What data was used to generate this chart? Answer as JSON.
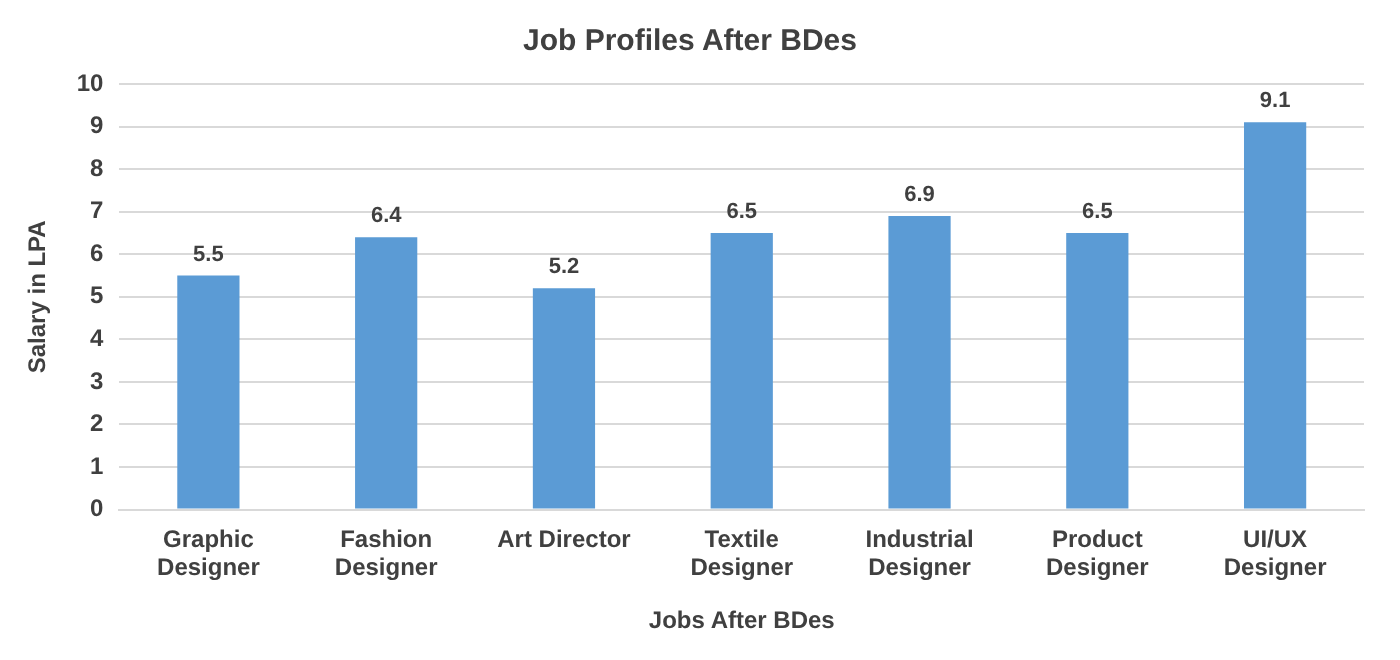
{
  "chart_data": {
    "type": "bar",
    "title": "Job Profiles After BDes",
    "xlabel": "Jobs After BDes",
    "ylabel": "Salary in LPA",
    "categories": [
      "Graphic Designer",
      "Fashion Designer",
      "Art Director",
      "Textile Designer",
      "Industrial Designer",
      "Product Designer",
      "UI/UX Designer"
    ],
    "values": [
      5.5,
      6.4,
      5.2,
      6.5,
      6.9,
      6.5,
      9.1
    ],
    "color": "#5b9bd5",
    "ylim": [
      0,
      10
    ],
    "yticks": [
      0,
      1,
      2,
      3,
      4,
      5,
      6,
      7,
      8,
      9,
      10
    ],
    "grid": "y",
    "data_labels": true,
    "legend": false
  }
}
